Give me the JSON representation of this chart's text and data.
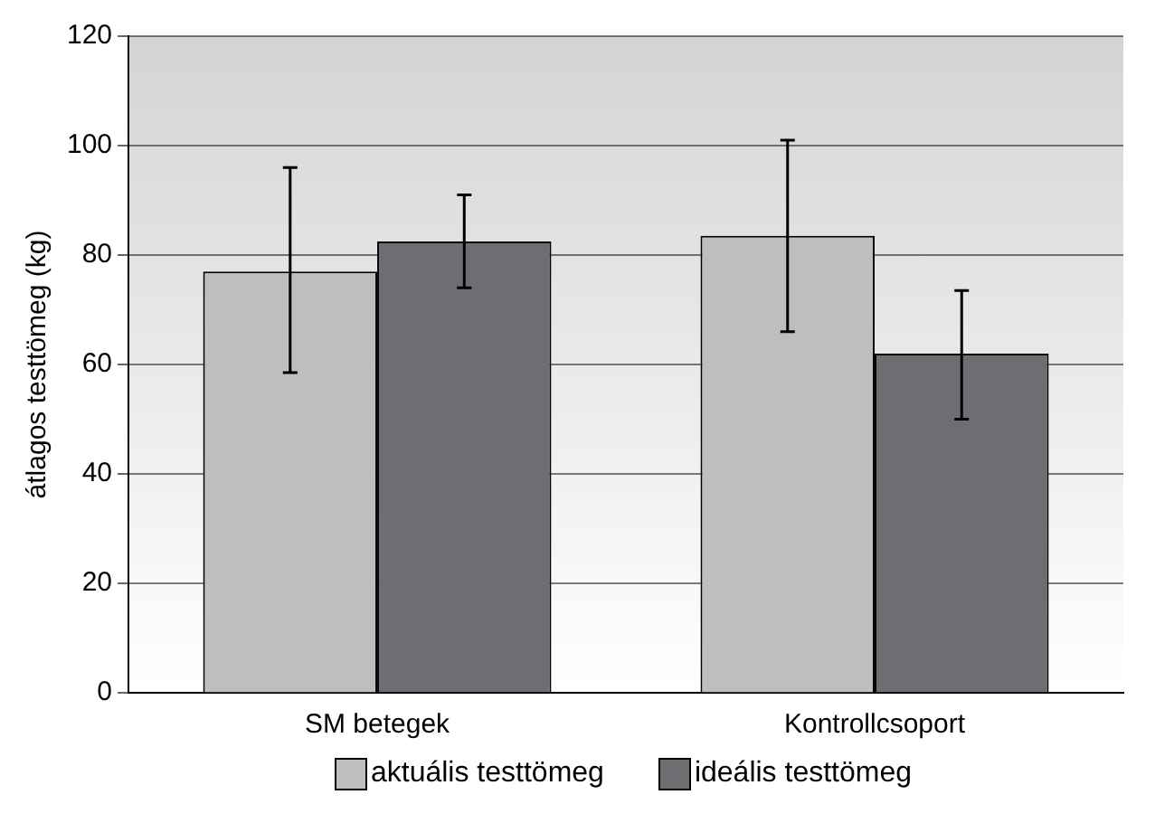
{
  "chart_data": {
    "type": "bar",
    "ylabel": "átlagos testtömeg (kg)",
    "categories": [
      "SM betegek",
      "Kontrollcsoport"
    ],
    "series": [
      {
        "name": "aktuális testtömeg",
        "color": "#bdbec0",
        "values": [
          77,
          83.5
        ],
        "errors": [
          [
            58.5,
            96
          ],
          [
            66,
            101
          ]
        ]
      },
      {
        "name": "ideális testtömeg",
        "color": "#6d6e71",
        "values": [
          82.5,
          62
        ],
        "errors": [
          [
            74,
            91
          ],
          [
            50,
            73.5
          ]
        ]
      }
    ],
    "ylim": [
      0,
      120
    ],
    "yticks": [
      0,
      20,
      40,
      60,
      80,
      100,
      120
    ],
    "grid": "y",
    "legend": "bottom"
  }
}
